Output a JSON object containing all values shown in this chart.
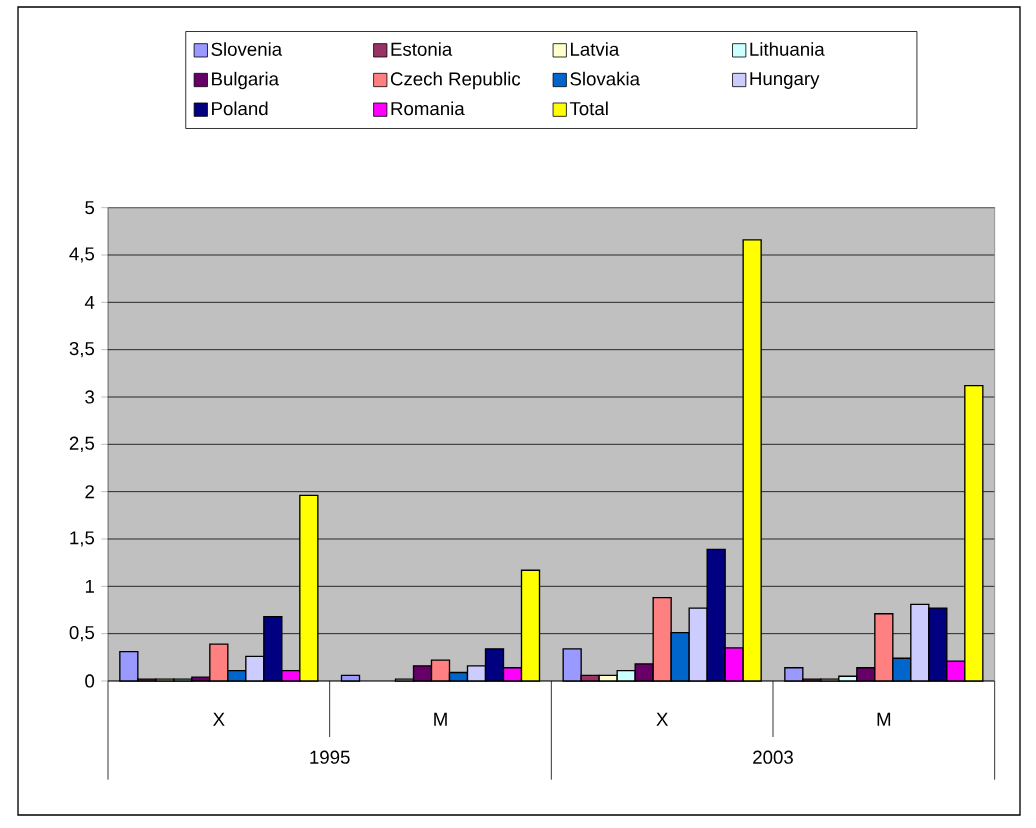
{
  "chart_data": {
    "type": "bar",
    "categories": [
      "X",
      "M",
      "X",
      "M"
    ],
    "series": [
      {
        "name": "Slovenia",
        "color": "#9999ff",
        "values": [
          0.31,
          0.06,
          0.34,
          0.14
        ]
      },
      {
        "name": "Estonia",
        "color": "#993366",
        "values": [
          0.02,
          null,
          0.06,
          0.02
        ]
      },
      {
        "name": "Latvia",
        "color": "#ffffcc",
        "values": [
          0.02,
          null,
          0.06,
          0.02
        ]
      },
      {
        "name": "Lithuania",
        "color": "#ccffff",
        "values": [
          0.02,
          0.02,
          0.11,
          0.05
        ]
      },
      {
        "name": "Bulgaria",
        "color": "#660066",
        "values": [
          0.04,
          0.16,
          0.18,
          0.14
        ]
      },
      {
        "name": "Czech Republic",
        "color": "#ff8080",
        "values": [
          0.39,
          0.22,
          0.88,
          0.71
        ]
      },
      {
        "name": "Slovakia",
        "color": "#0066cc",
        "values": [
          0.11,
          0.09,
          0.51,
          0.24
        ]
      },
      {
        "name": "Hungary",
        "color": "#ccccff",
        "values": [
          0.26,
          0.16,
          0.77,
          0.81
        ]
      },
      {
        "name": "Poland",
        "color": "#000080",
        "values": [
          0.68,
          0.34,
          1.39,
          0.77
        ]
      },
      {
        "name": "Romania",
        "color": "#ff00ff",
        "values": [
          0.11,
          0.14,
          0.35,
          0.21
        ]
      },
      {
        "name": "Total",
        "color": "#ffff00",
        "values": [
          1.96,
          1.17,
          4.66,
          3.12
        ]
      }
    ],
    "ylim": [
      0,
      5
    ],
    "yticks": [
      0,
      {
        "value": 0.5,
        "label": "0,5"
      },
      1,
      {
        "value": 1.5,
        "label": "1,5"
      },
      2,
      {
        "value": 2.5,
        "label": "2,5"
      },
      3,
      {
        "value": 3.5,
        "label": "3,5"
      },
      4,
      {
        "value": 4.5,
        "label": "4,5"
      },
      5
    ],
    "grid": "y",
    "legend": "top",
    "annotations": [
      "1995",
      "2003"
    ]
  }
}
